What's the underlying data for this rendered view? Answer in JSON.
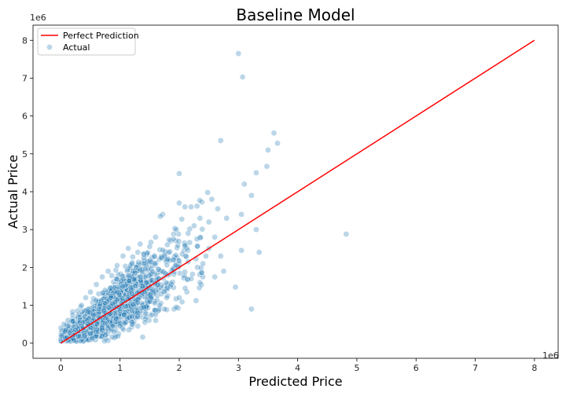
{
  "chart_data": {
    "type": "scatter",
    "title": "Baseline Model",
    "xlabel": "Predicted Price",
    "ylabel": "Actual Price",
    "x_offset_label": "1e6",
    "y_offset_label": "1e6",
    "xlim": [
      -0.47,
      8.4
    ],
    "ylim": [
      -0.4,
      8.4
    ],
    "x_ticks": [
      0,
      1,
      2,
      3,
      4,
      5,
      6,
      7,
      8
    ],
    "y_ticks": [
      0,
      1,
      2,
      3,
      4,
      5,
      6,
      7,
      8
    ],
    "x_tick_labels": [
      "0",
      "1",
      "2",
      "3",
      "4",
      "5",
      "6",
      "7",
      "8"
    ],
    "y_tick_labels": [
      "0",
      "1",
      "2",
      "3",
      "4",
      "5",
      "6",
      "7",
      "8"
    ],
    "grid": false,
    "legend": {
      "placement": "top-left",
      "entries": [
        "Perfect Prediction",
        "Actual"
      ]
    },
    "series": [
      {
        "name": "Perfect Prediction",
        "kind": "line",
        "color": "#ff0000",
        "x": [
          0,
          8
        ],
        "y": [
          0,
          8
        ]
      },
      {
        "name": "Actual",
        "kind": "scatter",
        "color": "#1f77b4",
        "opacity": 0.3,
        "points": [
          [
            3.0,
            7.65
          ],
          [
            3.07,
            7.03
          ],
          [
            3.6,
            5.55
          ],
          [
            3.66,
            5.28
          ],
          [
            2.7,
            5.35
          ],
          [
            3.5,
            5.1
          ],
          [
            3.48,
            4.67
          ],
          [
            2.0,
            4.48
          ],
          [
            3.3,
            4.5
          ],
          [
            3.1,
            4.2
          ],
          [
            3.22,
            3.9
          ],
          [
            2.48,
            3.98
          ],
          [
            2.55,
            3.8
          ],
          [
            2.2,
            3.6
          ],
          [
            2.3,
            3.62
          ],
          [
            2.0,
            3.7
          ],
          [
            1.72,
            3.4
          ],
          [
            1.68,
            3.35
          ],
          [
            2.8,
            3.3
          ],
          [
            3.05,
            3.4
          ],
          [
            4.82,
            2.88
          ],
          [
            3.3,
            3.0
          ],
          [
            3.35,
            2.4
          ],
          [
            3.05,
            2.45
          ],
          [
            2.6,
            2.8
          ],
          [
            2.7,
            2.3
          ],
          [
            2.75,
            1.9
          ],
          [
            2.95,
            1.48
          ],
          [
            3.22,
            0.9
          ],
          [
            2.5,
            2.5
          ],
          [
            2.4,
            2.1
          ],
          [
            2.2,
            1.7
          ],
          [
            1.9,
            2.2
          ],
          [
            1.8,
            2.6
          ],
          [
            1.6,
            2.8
          ],
          [
            1.5,
            2.55
          ],
          [
            2.15,
            2.9
          ],
          [
            2.25,
            3.1
          ],
          [
            2.35,
            3.3
          ],
          [
            1.95,
            3.0
          ],
          [
            2.05,
            2.35
          ],
          [
            2.45,
            2.3
          ],
          [
            2.6,
            1.75
          ],
          [
            2.35,
            1.6
          ],
          [
            2.1,
            1.45
          ],
          [
            2.0,
            1.2
          ],
          [
            1.95,
            0.95
          ],
          [
            1.75,
            0.9
          ],
          [
            1.6,
            0.75
          ],
          [
            1.42,
            0.55
          ],
          [
            1.3,
            0.45
          ],
          [
            1.15,
            0.35
          ],
          [
            1.85,
            1.5
          ],
          [
            1.7,
            1.3
          ],
          [
            1.65,
            1.95
          ],
          [
            1.4,
            2.25
          ],
          [
            1.3,
            2.4
          ],
          [
            1.2,
            2.1
          ],
          [
            1.05,
            2.3
          ],
          [
            0.95,
            2.05
          ],
          [
            0.8,
            1.9
          ],
          [
            0.7,
            1.75
          ],
          [
            0.6,
            1.55
          ],
          [
            0.5,
            1.35
          ],
          [
            0.42,
            1.2
          ],
          [
            0.35,
            1.0
          ],
          [
            0.28,
            0.85
          ],
          [
            0.2,
            0.75
          ],
          [
            0.12,
            0.6
          ],
          [
            0.05,
            0.5
          ],
          [
            0.0,
            0.4
          ],
          [
            0.02,
            0.2
          ],
          [
            0.1,
            0.15
          ],
          [
            0.2,
            0.12
          ],
          [
            0.3,
            0.18
          ],
          [
            0.4,
            0.2
          ],
          [
            0.5,
            0.25
          ],
          [
            0.6,
            0.3
          ],
          [
            0.7,
            0.35
          ],
          [
            0.8,
            0.4
          ],
          [
            0.9,
            0.3
          ],
          [
            1.0,
            0.45
          ],
          [
            1.1,
            0.55
          ],
          [
            1.2,
            0.7
          ],
          [
            1.3,
            0.8
          ],
          [
            1.4,
            0.95
          ],
          [
            1.5,
            1.1
          ],
          [
            1.55,
            1.4
          ],
          [
            1.45,
            1.6
          ],
          [
            1.35,
            1.75
          ],
          [
            1.25,
            1.85
          ],
          [
            1.15,
            1.65
          ],
          [
            1.05,
            1.5
          ],
          [
            0.95,
            1.35
          ],
          [
            0.85,
            1.2
          ],
          [
            0.75,
            1.05
          ],
          [
            0.65,
            0.9
          ],
          [
            0.55,
            0.75
          ],
          [
            0.45,
            0.6
          ],
          [
            0.35,
            0.45
          ],
          [
            0.25,
            0.35
          ],
          [
            0.15,
            0.28
          ],
          [
            2.3,
            2.75
          ],
          [
            2.5,
            3.2
          ],
          [
            2.65,
            3.55
          ],
          [
            1.9,
            2.75
          ],
          [
            1.75,
            2.3
          ],
          [
            2.15,
            2.15
          ]
        ]
      }
    ]
  }
}
